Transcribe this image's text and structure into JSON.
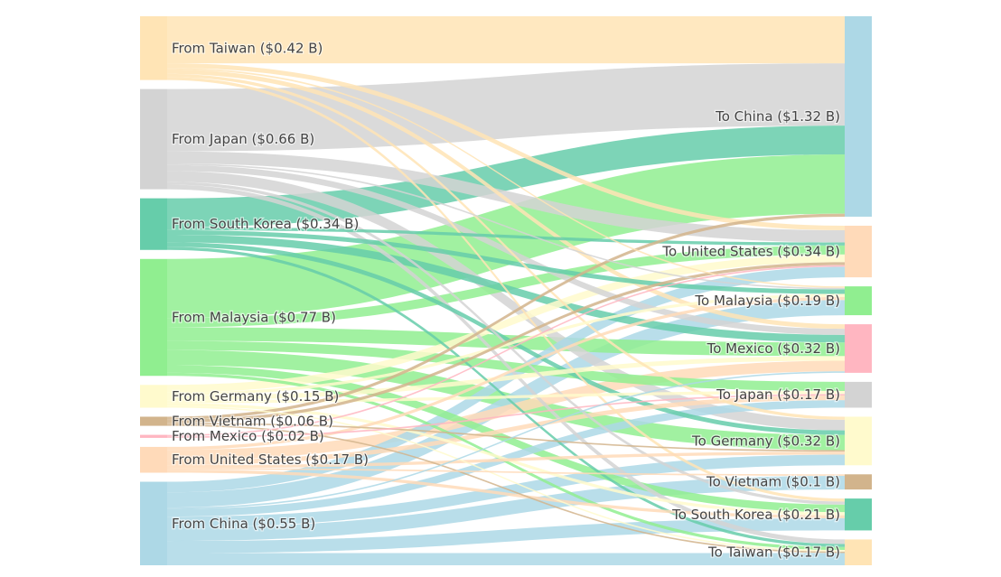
{
  "chart_data": {
    "type": "sankey",
    "unit": "$ B",
    "sources": [
      {
        "id": "s_tw",
        "label": "From Taiwan ($0.42 B)",
        "value": 0.42,
        "color": "#FFE4B5"
      },
      {
        "id": "s_jp",
        "label": "From Japan ($0.66 B)",
        "value": 0.66,
        "color": "#D3D3D3"
      },
      {
        "id": "s_kr",
        "label": "From South Korea ($0.34 B)",
        "value": 0.34,
        "color": "#66CDAA"
      },
      {
        "id": "s_my",
        "label": "From Malaysia ($0.77 B)",
        "value": 0.77,
        "color": "#90EE90"
      },
      {
        "id": "s_de",
        "label": "From Germany ($0.15 B)",
        "value": 0.15,
        "color": "#FFFACD"
      },
      {
        "id": "s_vn",
        "label": "From Vietnam ($0.06 B)",
        "value": 0.06,
        "color": "#D2B48C"
      },
      {
        "id": "s_mx",
        "label": "From Mexico ($0.02 B)",
        "value": 0.02,
        "color": "#FFB6C1"
      },
      {
        "id": "s_us",
        "label": "From United States ($0.17 B)",
        "value": 0.17,
        "color": "#FFDAB9"
      },
      {
        "id": "s_cn",
        "label": "From China ($0.55 B)",
        "value": 0.55,
        "color": "#ADD8E6"
      }
    ],
    "targets": [
      {
        "id": "t_cn",
        "label": "To China ($1.32 B)",
        "value": 1.32,
        "color": "#ADD8E6"
      },
      {
        "id": "t_us",
        "label": "To United States ($0.34 B)",
        "value": 0.34,
        "color": "#FFDAB9"
      },
      {
        "id": "t_my",
        "label": "To Malaysia ($0.19 B)",
        "value": 0.19,
        "color": "#90EE90"
      },
      {
        "id": "t_mx",
        "label": "To Mexico ($0.32 B)",
        "value": 0.32,
        "color": "#FFB6C1"
      },
      {
        "id": "t_jp",
        "label": "To Japan ($0.17 B)",
        "value": 0.17,
        "color": "#D3D3D3"
      },
      {
        "id": "t_de",
        "label": "To Germany ($0.32 B)",
        "value": 0.32,
        "color": "#FFFACD"
      },
      {
        "id": "t_vn",
        "label": "To Vietnam ($0.1 B)",
        "value": 0.1,
        "color": "#D2B48C"
      },
      {
        "id": "t_kr",
        "label": "To South Korea ($0.21 B)",
        "value": 0.21,
        "color": "#66CDAA"
      },
      {
        "id": "t_tw",
        "label": "To Taiwan ($0.17 B)",
        "value": 0.17,
        "color": "#FFE4B5"
      }
    ],
    "links": [
      [
        "s_tw",
        "t_cn",
        0.31
      ],
      [
        "s_tw",
        "t_us",
        0.03
      ],
      [
        "s_tw",
        "t_my",
        0.01
      ],
      [
        "s_tw",
        "t_mx",
        0.03
      ],
      [
        "s_tw",
        "t_de",
        0.02
      ],
      [
        "s_tw",
        "t_kr",
        0.02
      ],
      [
        "s_jp",
        "t_cn",
        0.41
      ],
      [
        "s_jp",
        "t_us",
        0.08
      ],
      [
        "s_jp",
        "t_my",
        0.01
      ],
      [
        "s_jp",
        "t_mx",
        0.04
      ],
      [
        "s_jp",
        "t_de",
        0.07
      ],
      [
        "s_jp",
        "t_kr",
        0.02
      ],
      [
        "s_jp",
        "t_tw",
        0.03
      ],
      [
        "s_kr",
        "t_cn",
        0.19
      ],
      [
        "s_kr",
        "t_us",
        0.02
      ],
      [
        "s_kr",
        "t_my",
        0.03
      ],
      [
        "s_kr",
        "t_mx",
        0.05
      ],
      [
        "s_kr",
        "t_de",
        0.03
      ],
      [
        "s_kr",
        "t_tw",
        0.02
      ],
      [
        "s_my",
        "t_cn",
        0.39
      ],
      [
        "s_my",
        "t_us",
        0.06
      ],
      [
        "s_my",
        "t_mx",
        0.09
      ],
      [
        "s_my",
        "t_jp",
        0.06
      ],
      [
        "s_my",
        "t_de",
        0.1
      ],
      [
        "s_my",
        "t_kr",
        0.05
      ],
      [
        "s_my",
        "t_tw",
        0.02
      ],
      [
        "s_de",
        "t_us",
        0.05
      ],
      [
        "s_de",
        "t_my",
        0.02
      ],
      [
        "s_de",
        "t_mx",
        0.03
      ],
      [
        "s_de",
        "t_jp",
        0.02
      ],
      [
        "s_de",
        "t_kr",
        0.02
      ],
      [
        "s_de",
        "t_tw",
        0.01
      ],
      [
        "s_vn",
        "t_cn",
        0.02
      ],
      [
        "s_vn",
        "t_us",
        0.02
      ],
      [
        "s_vn",
        "t_de",
        0.01
      ],
      [
        "s_vn",
        "t_tw",
        0.01
      ],
      [
        "s_mx",
        "t_us",
        0.01
      ],
      [
        "s_mx",
        "t_jp",
        0.01
      ],
      [
        "s_us",
        "t_my",
        0.02
      ],
      [
        "s_us",
        "t_mx",
        0.07
      ],
      [
        "s_us",
        "t_jp",
        0.03
      ],
      [
        "s_us",
        "t_de",
        0.02
      ],
      [
        "s_us",
        "t_vn",
        0.01
      ],
      [
        "s_us",
        "t_kr",
        0.02
      ],
      [
        "s_cn",
        "t_us",
        0.07
      ],
      [
        "s_cn",
        "t_my",
        0.1
      ],
      [
        "s_cn",
        "t_mx",
        0.01
      ],
      [
        "s_cn",
        "t_jp",
        0.05
      ],
      [
        "s_cn",
        "t_de",
        0.07
      ],
      [
        "s_cn",
        "t_vn",
        0.09
      ],
      [
        "s_cn",
        "t_kr",
        0.08
      ],
      [
        "s_cn",
        "t_tw",
        0.08
      ]
    ]
  }
}
